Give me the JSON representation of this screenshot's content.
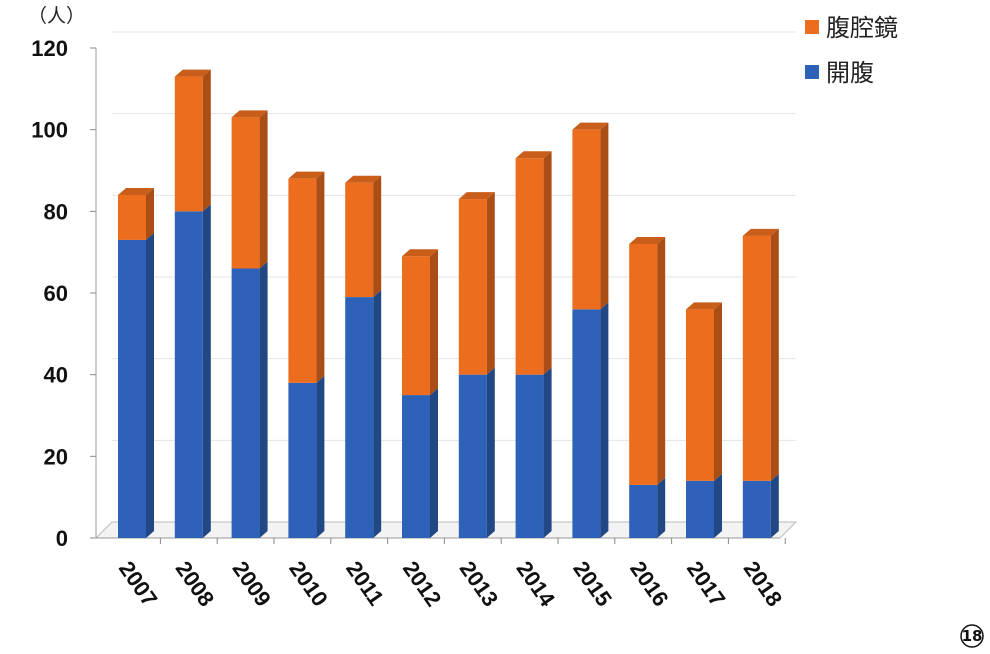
{
  "chart_data": {
    "type": "bar",
    "stacked": true,
    "three_d": true,
    "categories": [
      "2007",
      "2008",
      "2009",
      "2010",
      "2011",
      "2012",
      "2013",
      "2014",
      "2015",
      "2016",
      "2017",
      "2018"
    ],
    "series": [
      {
        "name": "開腹",
        "color": "#2e62b8",
        "values": [
          73,
          80,
          66,
          38,
          59,
          35,
          40,
          40,
          56,
          13,
          14,
          14
        ]
      },
      {
        "name": "腹腔鏡",
        "color": "#ec6d1e",
        "values": [
          11,
          33,
          37,
          50,
          28,
          34,
          43,
          53,
          44,
          59,
          42,
          60
        ]
      }
    ],
    "ylabel": "（人）",
    "ylim": [
      0,
      120
    ],
    "yticks": [
      0,
      20,
      40,
      60,
      80,
      100,
      120
    ],
    "grid": true,
    "legend_position": "top-right"
  },
  "page_badge": "⑱"
}
